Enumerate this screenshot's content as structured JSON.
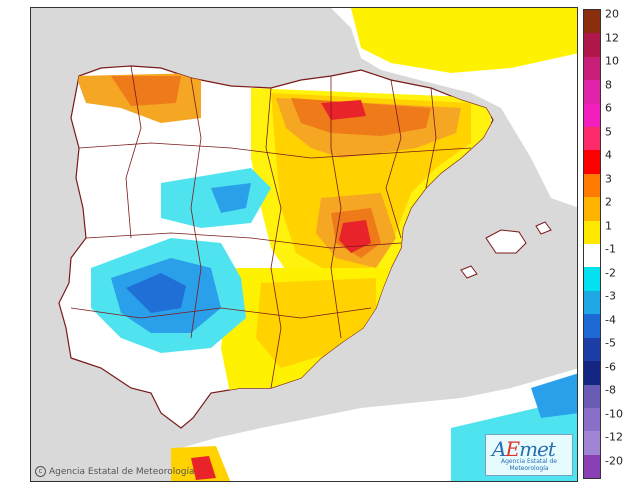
{
  "map": {
    "copyright": "Agencia Estatal de Meteorología",
    "copyright_icon": "copyright-icon",
    "logo": {
      "name_a": "A",
      "name_e": "E",
      "name_rest": "met",
      "subtitle": "Agencia Estatal de Meteorología"
    },
    "colors": {
      "sea": "#d9d9d9",
      "land": "#ffffff",
      "border": "#7a1a1a",
      "plus1": "#fff200",
      "plus2": "#ffd200",
      "plus3": "#f5a623",
      "plus4": "#ee7a1a",
      "plus5": "#e8232a",
      "minus1": "#4fe3f0",
      "minus2": "#2aa0ea",
      "minus3": "#1f6fd6",
      "minus4": "#1e3fa8"
    }
  },
  "legend": {
    "labels": [
      "20",
      "12",
      "10",
      "8",
      "6",
      "5",
      "4",
      "3",
      "2",
      "1",
      "-1",
      "-2",
      "-3",
      "-4",
      "-5",
      "-6",
      "-8",
      "-10",
      "-12",
      "-20"
    ],
    "colors": [
      "#8b2e0e",
      "#b0174a",
      "#c91f78",
      "#e023a8",
      "#f21dbd",
      "#ff2a6a",
      "#ff0000",
      "#ff7a00",
      "#ffb400",
      "#ffe800",
      "#ffffff",
      "#00e2ef",
      "#1fa8e6",
      "#1e6ad4",
      "#1b3fa6",
      "#142682",
      "#6a5bb5",
      "#8a6fc8",
      "#a085d4",
      "#8a3fb5"
    ]
  }
}
